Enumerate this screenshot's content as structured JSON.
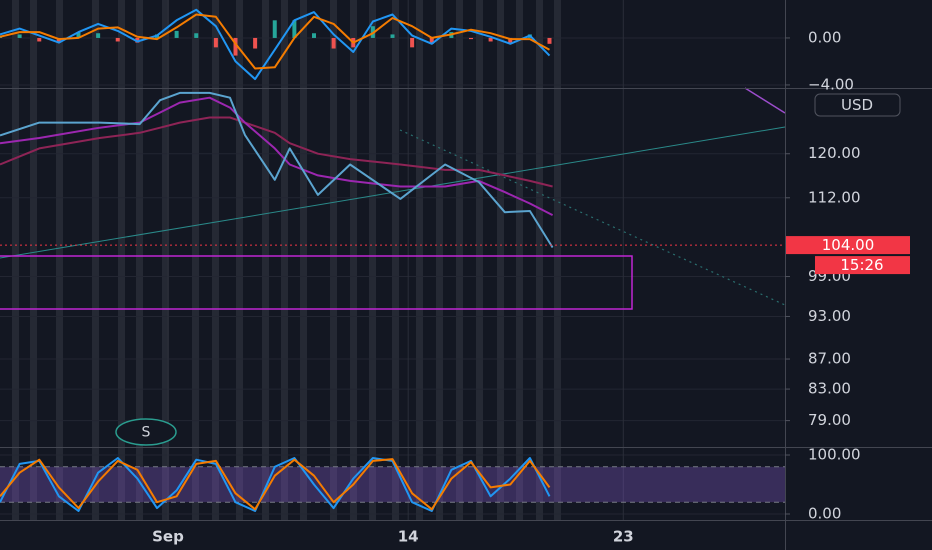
{
  "chart_data": [
    {
      "type": "line",
      "xlim": [
        0,
        100
      ],
      "ylim": [
        -4.26,
        3.23
      ],
      "yticks": [
        {
          "value": 0,
          "label": "0.00"
        },
        {
          "value": -4,
          "label": "−4.00"
        }
      ],
      "x": [
        0,
        2.5,
        5,
        7.5,
        10,
        12.5,
        15,
        17.5,
        20,
        22.5,
        25,
        27.5,
        30,
        32.5,
        35,
        37.5,
        40,
        42.5,
        45,
        47.5,
        50,
        52.5,
        55,
        57.5,
        60,
        62.5,
        65,
        67.5,
        70
      ],
      "series": [
        {
          "color": "#2196f3",
          "values": [
            0.3,
            0.8,
            0.2,
            -0.4,
            0.5,
            1.2,
            0.6,
            -0.3,
            0.2,
            1.5,
            2.4,
            1.0,
            -2.0,
            -3.5,
            -1.0,
            1.5,
            2.2,
            0.3,
            -1.2,
            1.4,
            2.0,
            0.2,
            -0.5,
            0.8,
            0.6,
            0.1,
            -0.5,
            0.2,
            -1.5
          ]
        },
        {
          "color": "#f57c00",
          "values": [
            0.1,
            0.5,
            0.5,
            -0.1,
            0.0,
            0.8,
            0.9,
            0.1,
            -0.1,
            0.9,
            2.0,
            1.8,
            -0.5,
            -2.6,
            -2.5,
            0.0,
            1.8,
            1.2,
            -0.4,
            0.4,
            1.7,
            1.0,
            0.0,
            0.3,
            0.7,
            0.4,
            -0.1,
            -0.1,
            -1.0
          ]
        }
      ],
      "histogram": {
        "colors": [
          "#26a69a",
          "#ef5350"
        ],
        "values": [
          0.2,
          0.3,
          -0.3,
          -0.3,
          0.5,
          0.4,
          -0.3,
          -0.4,
          0.3,
          0.6,
          0.4,
          -0.8,
          -1.5,
          -0.9,
          1.5,
          1.5,
          0.4,
          -0.9,
          -0.8,
          1.0,
          0.3,
          -0.8,
          -0.5,
          0.5,
          -0.1,
          -0.3,
          -0.4,
          0.3,
          -0.5
        ]
      }
    },
    {
      "type": "line",
      "log_scale": true,
      "xlim": [
        0,
        100
      ],
      "ylim": [
        75.8,
        132.6
      ],
      "yticks": [
        {
          "value": 120,
          "label": "120.00"
        },
        {
          "value": 112,
          "label": "112.00"
        },
        {
          "value": 99,
          "label": "99.00"
        },
        {
          "value": 93,
          "label": "93.00"
        },
        {
          "value": 87,
          "label": "87.00"
        },
        {
          "value": 83,
          "label": "83.00"
        },
        {
          "value": 79,
          "label": "79.00"
        }
      ],
      "last_price": {
        "value": 104,
        "label": "104.00",
        "color": "#f23645"
      },
      "countdown": "15:26",
      "currency": "USD",
      "marker": "S",
      "x": [
        0,
        5,
        12.7,
        17.8,
        20.4,
        22.9,
        26.7,
        29.3,
        31.2,
        35,
        36.9,
        40.5,
        44.6,
        51,
        56.7,
        61,
        64.3,
        67.5,
        70.4
      ],
      "series": [
        {
          "color": "#8e2456",
          "values": [
            118,
            121,
            123,
            124,
            125,
            126,
            127,
            127,
            126,
            124,
            122,
            120,
            119,
            118,
            117,
            117,
            116,
            115,
            114
          ]
        },
        {
          "color": "#9c27b0",
          "values": [
            122,
            123,
            125,
            126,
            128,
            130,
            131,
            129,
            126,
            121,
            118,
            116,
            115,
            114,
            114,
            115,
            113,
            111,
            109
          ]
        },
        {
          "color": "#5ba4cf",
          "values": [
            123.5,
            126,
            126,
            125.7,
            130.5,
            132,
            132,
            131,
            123.6,
            115.2,
            121,
            112.5,
            118,
            111.8,
            118,
            114.8,
            109.5,
            109.7,
            103.6
          ]
        }
      ]
    },
    {
      "type": "line",
      "xlim": [
        0,
        100
      ],
      "ylim": [
        -10.2,
        110.2
      ],
      "yticks": [
        {
          "value": 100,
          "label": "100.00"
        },
        {
          "value": 0,
          "label": "0.00"
        }
      ],
      "band": [
        20,
        80
      ],
      "xticks": [
        {
          "value": 21.4,
          "label": "Sep"
        },
        {
          "value": 52,
          "label": "14"
        },
        {
          "value": 79.4,
          "label": "23"
        }
      ],
      "x": [
        0,
        2.5,
        5,
        7.5,
        10,
        12.5,
        15,
        17.5,
        20,
        22.5,
        25,
        27.5,
        30,
        32.5,
        35,
        37.5,
        40,
        42.5,
        45,
        47.5,
        50,
        52.5,
        55,
        57.5,
        60,
        62.5,
        65,
        67.5,
        70
      ],
      "series": [
        {
          "color": "#2196f3",
          "values": [
            20,
            85,
            90,
            30,
            5,
            70,
            95,
            60,
            10,
            40,
            92,
            85,
            20,
            5,
            80,
            95,
            50,
            10,
            60,
            95,
            90,
            20,
            5,
            75,
            90,
            30,
            60,
            95,
            30
          ]
        },
        {
          "color": "#f57c00",
          "values": [
            30,
            70,
            92,
            45,
            10,
            55,
            90,
            75,
            20,
            30,
            85,
            90,
            35,
            8,
            65,
            92,
            65,
            20,
            50,
            90,
            93,
            35,
            8,
            60,
            88,
            45,
            50,
            90,
            45
          ]
        }
      ]
    }
  ]
}
